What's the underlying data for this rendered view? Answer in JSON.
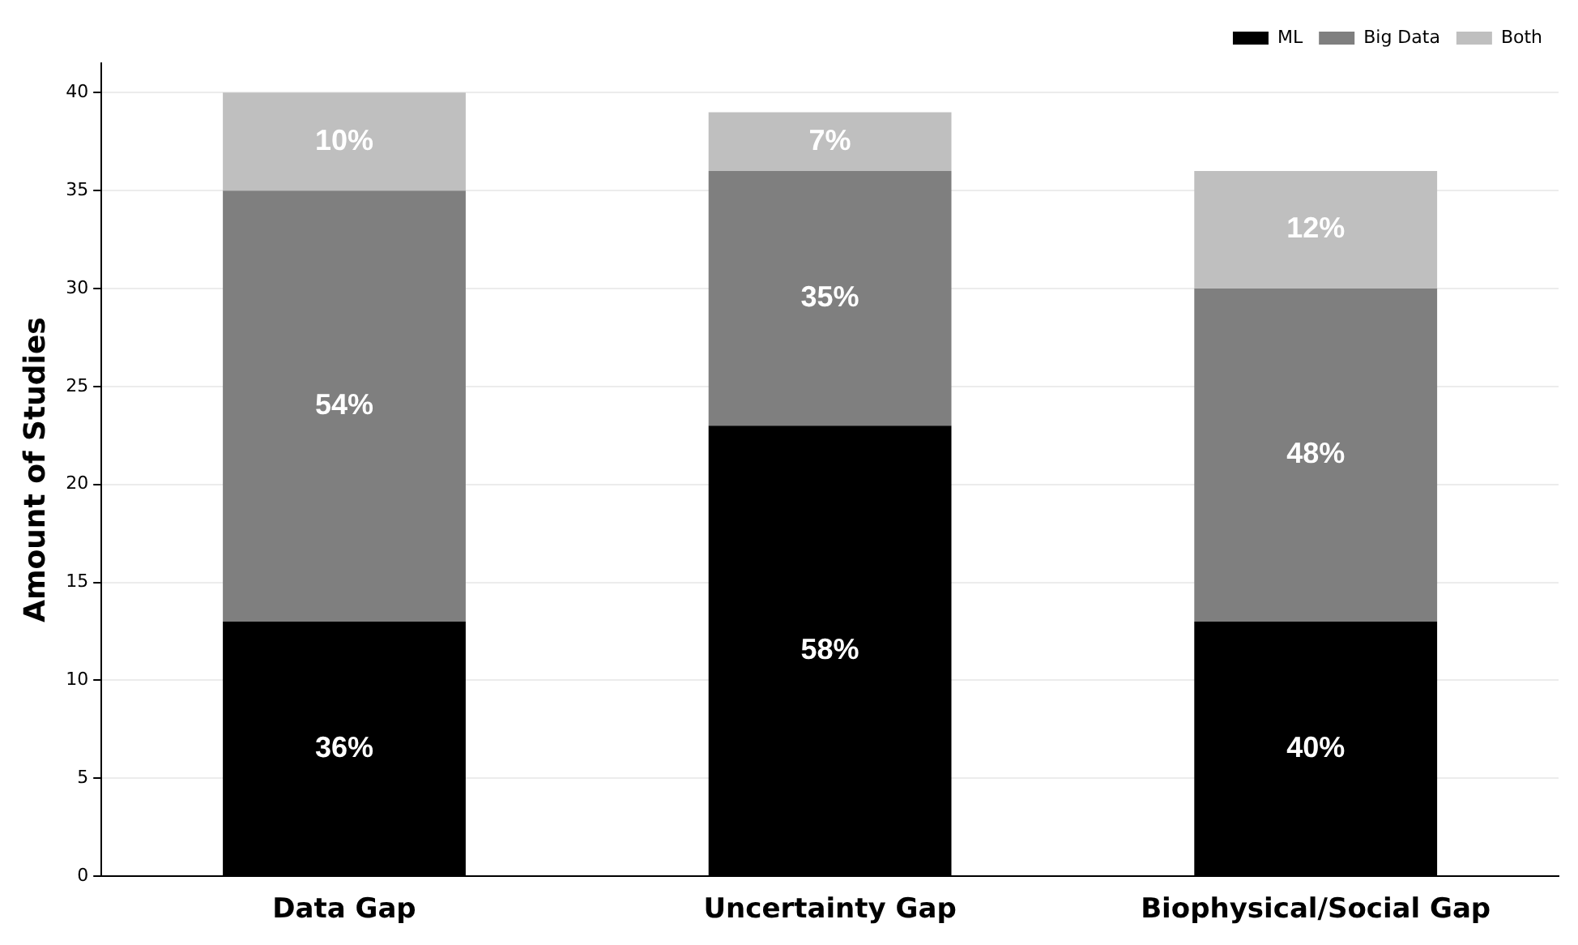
{
  "chart_data": {
    "type": "bar",
    "ylabel": "Amount of Studies",
    "categories": [
      "Data Gap",
      "Uncertainty Gap",
      "Biophysical/Social Gap"
    ],
    "series": [
      {
        "name": "ML",
        "color": "#000000",
        "values": [
          13,
          23,
          13
        ]
      },
      {
        "name": "Big Data",
        "color": "#7f7f7f",
        "values": [
          22,
          13,
          17
        ]
      },
      {
        "name": "Both",
        "color": "#bfbfbf",
        "values": [
          5,
          3,
          6
        ]
      }
    ],
    "annotations": [
      "36%",
      "58%",
      "40%",
      "54%",
      "35%",
      "48%",
      "10%",
      "7%",
      "12%"
    ],
    "stacked": true,
    "ylim": [
      0,
      41.5
    ],
    "yticks": [
      0,
      5,
      10,
      15,
      20,
      25,
      30,
      35,
      40
    ],
    "grid": "y",
    "legend": "top right"
  }
}
